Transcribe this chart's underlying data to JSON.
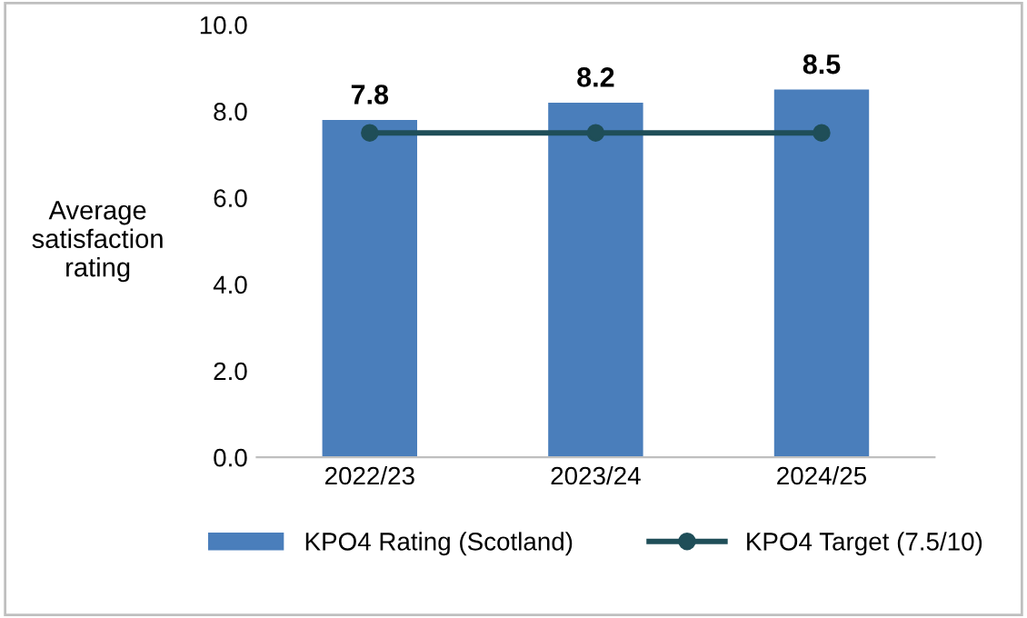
{
  "chart_data": {
    "type": "bar",
    "ylabel": "Average\nsatisfaction\nrating",
    "categories": [
      "2022/23",
      "2023/24",
      "2024/25"
    ],
    "series": [
      {
        "name": "KPO4 Rating (Scotland)",
        "color": "#4a7ebb",
        "values": [
          7.8,
          8.2,
          8.5
        ],
        "data_labels": true
      },
      {
        "name": "KPO4 Target (7.5/10)",
        "type": "line",
        "color": "#1f4e58",
        "values": [
          7.5,
          7.5,
          7.5
        ],
        "marker": "circle",
        "line_style": "solid"
      }
    ],
    "ylim": [
      0,
      10
    ],
    "yticks": [
      {
        "value": 0,
        "label": "0.0"
      },
      {
        "value": 2,
        "label": "2.0"
      },
      {
        "value": 4,
        "label": "4.0"
      },
      {
        "value": 6,
        "label": "6.0"
      },
      {
        "value": 8,
        "label": "8.0"
      },
      {
        "value": 10,
        "label": "10.0"
      }
    ],
    "grid": false,
    "legend": "bottom"
  }
}
